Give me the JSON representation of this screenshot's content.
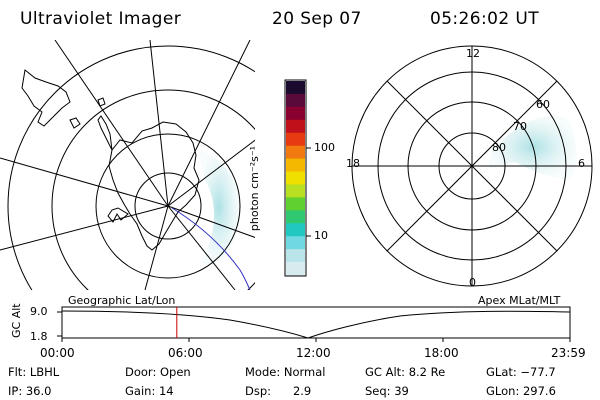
{
  "header": {
    "title": "Ultraviolet Imager",
    "date": "20 Sep 07",
    "time": "05:26:02 UT"
  },
  "geo_map": {
    "label": "Geographic Lat/Lon"
  },
  "colorbar": {
    "unit_label": "photon cm⁻²s⁻¹",
    "ticks": [
      "100",
      "10"
    ],
    "colors": [
      "#1a0a2e",
      "#5a0a3a",
      "#8a0030",
      "#c0101a",
      "#e83a10",
      "#f07a10",
      "#f5b800",
      "#f0e000",
      "#b8e020",
      "#60d030",
      "#30c870",
      "#20c8c0",
      "#70d8e0",
      "#b8e4ea",
      "#d8ecf0"
    ]
  },
  "polar_plot": {
    "label": "Apex MLat/MLT",
    "mlt_labels": [
      "12",
      "18",
      "6",
      "0"
    ],
    "lat_labels": [
      "60",
      "70",
      "80"
    ]
  },
  "timeline": {
    "y_axis_label": "GC Alt",
    "y_ticks": [
      "9.0",
      "1.8"
    ],
    "x_ticks": [
      "00:00",
      "06:00",
      "12:00",
      "18:00",
      "23:59"
    ],
    "current_time_fraction": 0.226,
    "accent_color": "#cc0000"
  },
  "status": {
    "flt": "Flt: LBHL",
    "ip": "IP: 36.0",
    "door": "Door: Open",
    "gain": "Gain: 14",
    "mode": "Mode: Normal",
    "dsp": "Dsp:      2.9",
    "gc_alt": "GC Alt: 8.2 Re",
    "seq": "Seq: 39",
    "glat": "GLat: −77.7",
    "glon": "GLon: 297.6"
  }
}
